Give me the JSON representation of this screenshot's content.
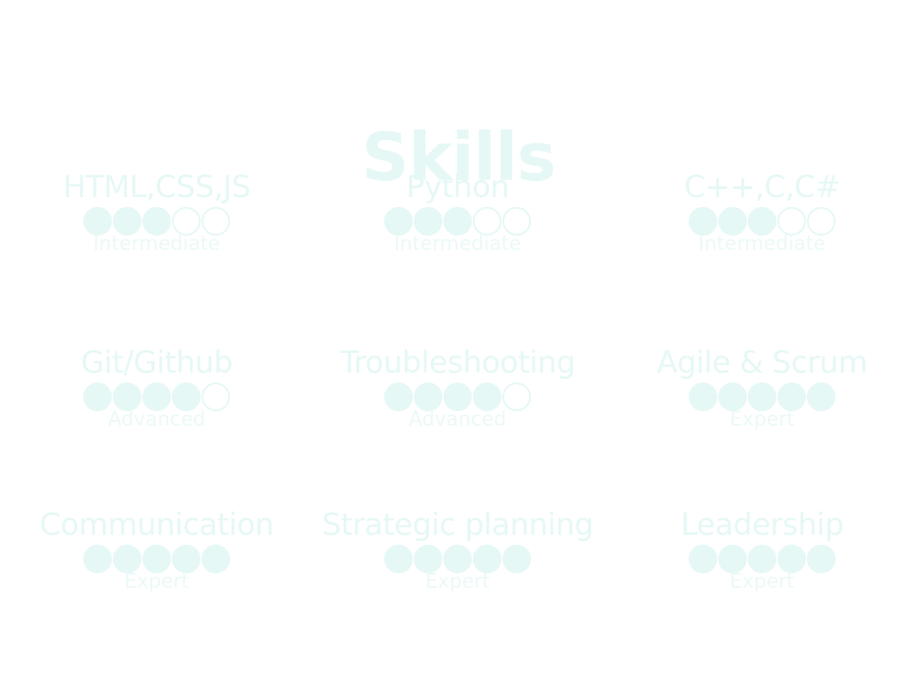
{
  "page": {
    "title": "Skills"
  },
  "skills": [
    {
      "name": "HTML,CSS,JS",
      "level": "Intermediate",
      "rating": 3,
      "max": 5
    },
    {
      "name": "Python",
      "level": "Intermediate",
      "rating": 3,
      "max": 5
    },
    {
      "name": "C++,C,C#",
      "level": "Intermediate",
      "rating": 3,
      "max": 5
    },
    {
      "name": "Git/Github",
      "level": "Advanced",
      "rating": 4,
      "max": 5
    },
    {
      "name": "Troubleshooting",
      "level": "Advanced",
      "rating": 4,
      "max": 5
    },
    {
      "name": "Agile & Scrum",
      "level": "Expert",
      "rating": 5,
      "max": 5
    },
    {
      "name": "Communication",
      "level": "Expert",
      "rating": 5,
      "max": 5
    },
    {
      "name": "Strategic planning",
      "level": "Expert",
      "rating": 5,
      "max": 5
    },
    {
      "name": "Leadership",
      "level": "Expert",
      "rating": 5,
      "max": 5
    }
  ],
  "colors": {
    "text": "#e6f8f6",
    "background": "#ffffff"
  }
}
